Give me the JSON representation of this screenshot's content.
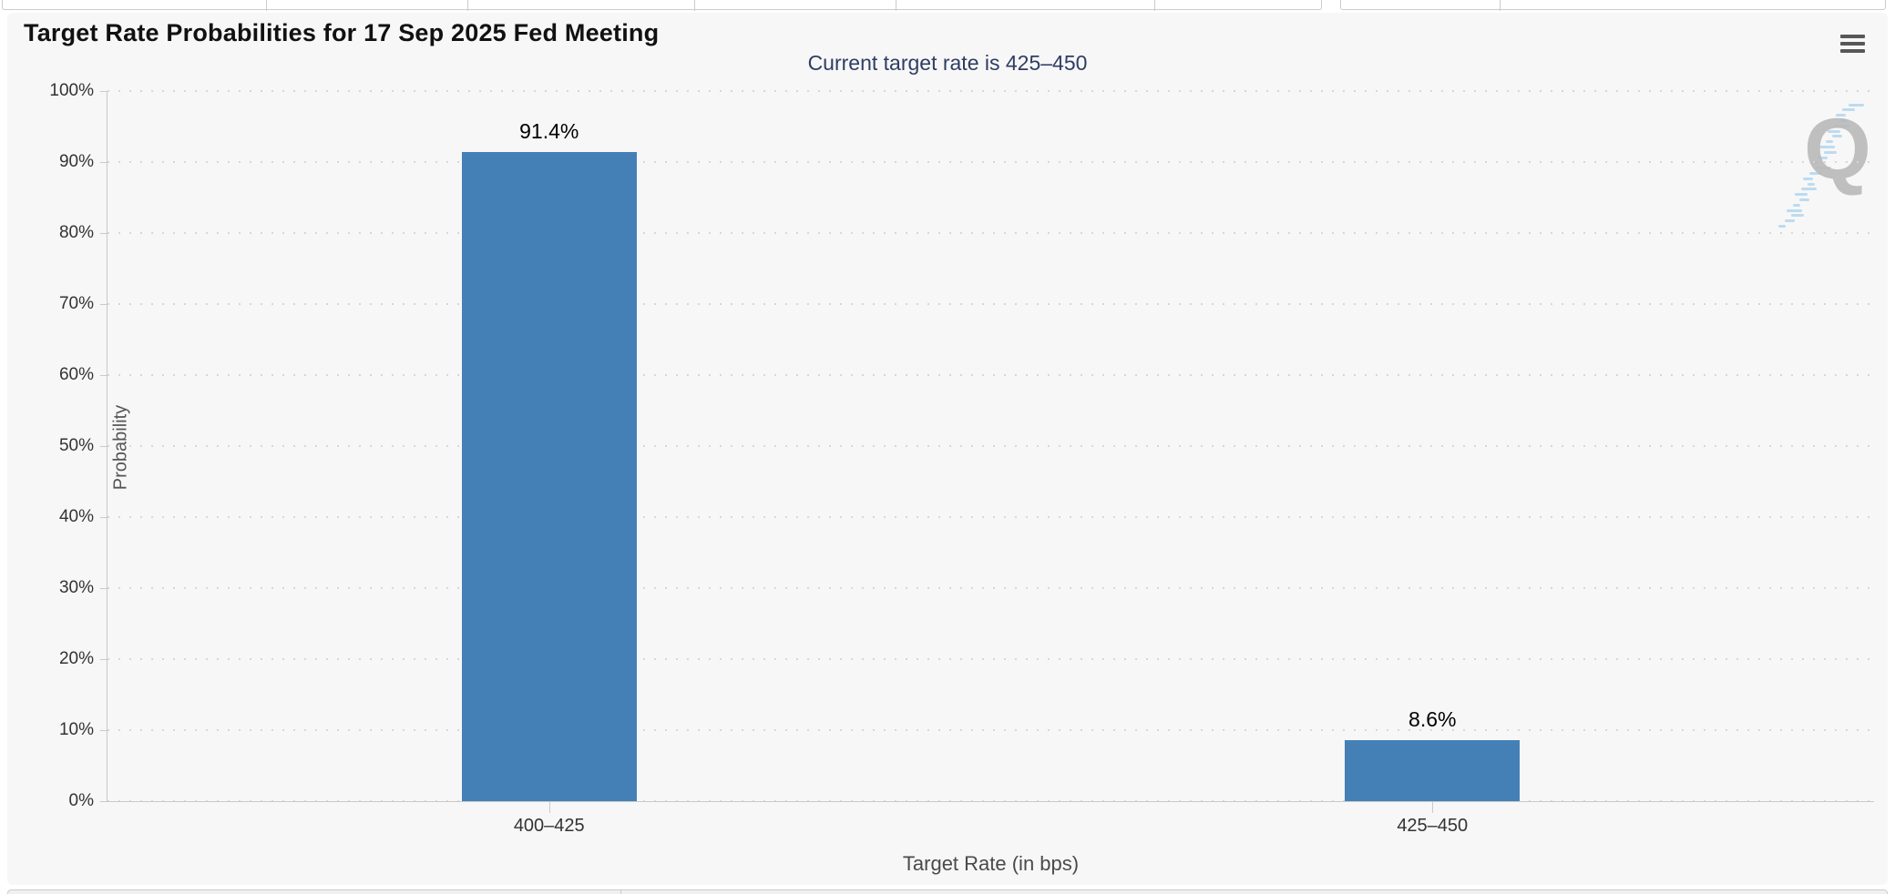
{
  "chart": {
    "watermark_letter": "Q",
    "menu_icon": "hamburger-icon"
  },
  "chart_data": {
    "type": "bar",
    "title": "Target Rate Probabilities for 17 Sep 2025 Fed Meeting",
    "subtitle": "Current target rate is 425–450",
    "categories": [
      "400–425",
      "425–450"
    ],
    "values": [
      91.4,
      8.6
    ],
    "data_labels": [
      "91.4%",
      "8.6%"
    ],
    "xlabel": "Target Rate (in bps)",
    "ylabel": "Probability",
    "ylim": [
      0,
      100
    ],
    "ytick_step": 10,
    "ytick_labels": [
      "0%",
      "10%",
      "20%",
      "30%",
      "40%",
      "50%",
      "60%",
      "70%",
      "80%",
      "90%",
      "100%"
    ],
    "legend": "none",
    "grid": "horizontal-dotted",
    "bar_color": "#4480b6"
  },
  "colors": {
    "bar": "#4480b6",
    "panel_background": "#f7f7f7",
    "subtitle_text": "#2e3d63",
    "title_text": "#111111",
    "axis_line": "#c9c9c9",
    "grid_dot": "#d7d7d7",
    "tick_label_text": "#333333",
    "axis_title_text": "#555555",
    "watermark_gray": "#b9b9b9",
    "watermark_blue": "#aed3ec"
  }
}
